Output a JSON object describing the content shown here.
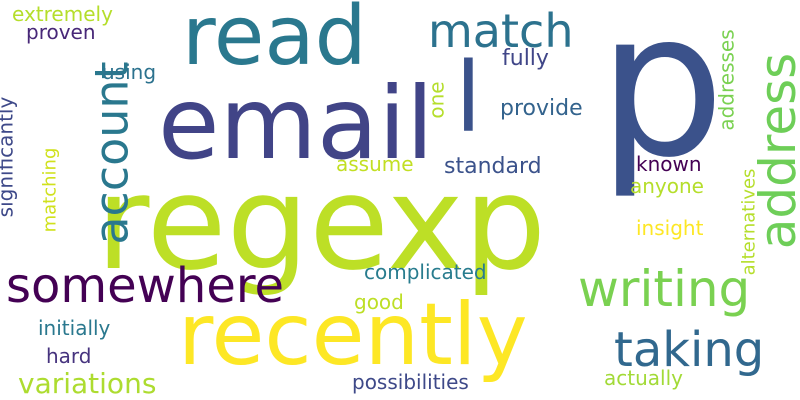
{
  "background": "#ffffff",
  "words": [
    {
      "text": "regexp",
      "color": "#bddf26"
    },
    {
      "text": "p",
      "color": "#3b528b"
    },
    {
      "text": "email",
      "color": "#414487"
    },
    {
      "text": "read",
      "color": "#2a788e"
    },
    {
      "text": "recently",
      "color": "#fde725"
    },
    {
      "text": "somewhere",
      "color": "#440154"
    },
    {
      "text": "address",
      "color": "#6ece58"
    },
    {
      "text": "writing",
      "color": "#7ad151"
    },
    {
      "text": "taking",
      "color": "#31688e"
    },
    {
      "text": "account",
      "color": "#2a788e"
    },
    {
      "text": "match",
      "color": "#2c728e"
    },
    {
      "text": "l",
      "color": "#3b528b"
    },
    {
      "text": "variations",
      "color": "#addc30"
    },
    {
      "text": "complicated",
      "color": "#287c8e"
    },
    {
      "text": "extremely",
      "color": "#b5de2b"
    },
    {
      "text": "proven",
      "color": "#482878"
    },
    {
      "text": "using",
      "color": "#2c728e"
    },
    {
      "text": "significantly",
      "color": "#3e4989"
    },
    {
      "text": "matching",
      "color": "#d0e11c"
    },
    {
      "text": "fully",
      "color": "#404688"
    },
    {
      "text": "one",
      "color": "#b5de2b"
    },
    {
      "text": "provide",
      "color": "#33638d"
    },
    {
      "text": "addresses",
      "color": "#7ad151"
    },
    {
      "text": "alternatives",
      "color": "#b5de2b"
    },
    {
      "text": "known",
      "color": "#440154"
    },
    {
      "text": "assume",
      "color": "#c2df23"
    },
    {
      "text": "standard",
      "color": "#3b528b"
    },
    {
      "text": "anyone",
      "color": "#b5de2b"
    },
    {
      "text": "insight",
      "color": "#fde725"
    },
    {
      "text": "good",
      "color": "#bddf26"
    },
    {
      "text": "initially",
      "color": "#2a788e"
    },
    {
      "text": "hard",
      "color": "#46337e"
    },
    {
      "text": "possibilities",
      "color": "#3e4989"
    },
    {
      "text": "actually",
      "color": "#a2da37"
    }
  ]
}
